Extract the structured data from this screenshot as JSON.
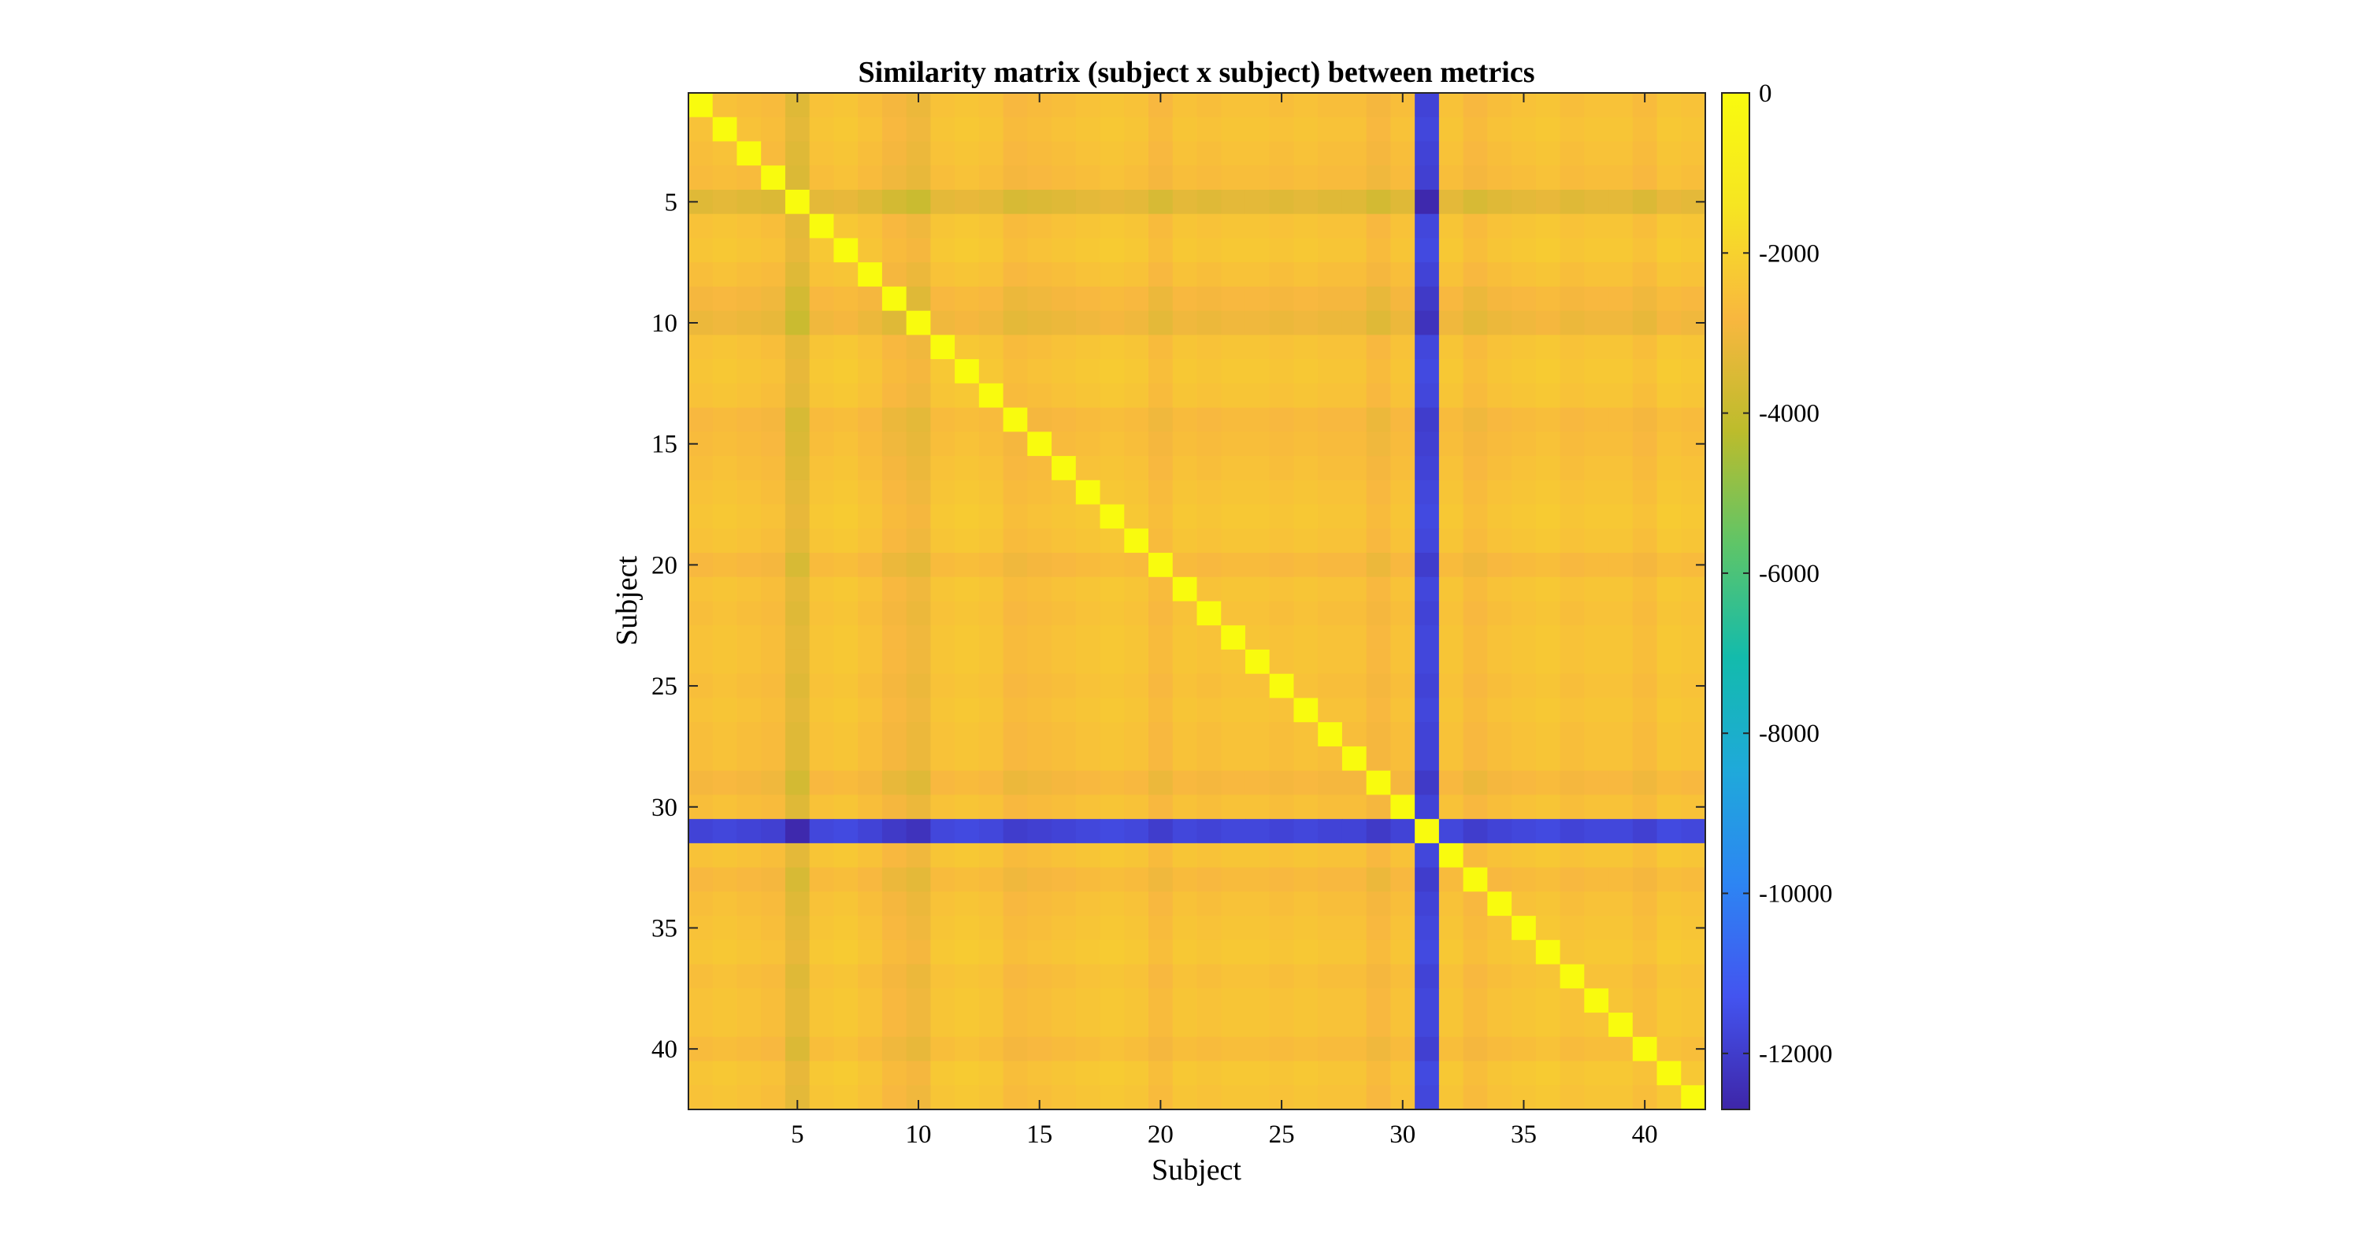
{
  "chart_data": {
    "type": "heatmap",
    "title": "Similarity matrix (subject x subject) between metrics",
    "xlabel": "Subject",
    "ylabel": "Subject",
    "n": 42,
    "xlim": [
      0.5,
      42.5
    ],
    "ylim": [
      0.5,
      42.5
    ],
    "y_direction": "reversed",
    "x_ticks": [
      5,
      10,
      15,
      20,
      25,
      30,
      35,
      40
    ],
    "y_ticks": [
      5,
      10,
      15,
      20,
      25,
      30,
      35,
      40
    ],
    "x_tick_labels": [
      "5",
      "10",
      "15",
      "20",
      "25",
      "30",
      "35",
      "40"
    ],
    "y_tick_labels": [
      "5",
      "10",
      "15",
      "20",
      "25",
      "30",
      "35",
      "40"
    ],
    "diagonal_value": 0,
    "baseline_value": -1800,
    "subject_offsets": [
      -400,
      -300,
      -400,
      -500,
      -1200,
      -300,
      -200,
      -400,
      -700,
      -900,
      -300,
      -200,
      -300,
      -600,
      -500,
      -400,
      -300,
      -200,
      -300,
      -600,
      -300,
      -400,
      -300,
      -300,
      -400,
      -300,
      -400,
      -400,
      -700,
      -400,
      -9600,
      -300,
      -600,
      -400,
      -300,
      -200,
      -400,
      -300,
      -300,
      -500,
      -200,
      -300
    ],
    "value_pattern": "symmetric; off-diagonal value(i,j) = baseline_value + subject_offsets[i] + subject_offsets[j]; diagonal = diagonal_value",
    "colorbar": {
      "min": -12700,
      "max": 0,
      "ticks": [
        0,
        -2000,
        -4000,
        -6000,
        -8000,
        -10000,
        -12000
      ],
      "tick_labels": [
        "0",
        "-2000",
        "-4000",
        "-6000",
        "-8000",
        "-10000",
        "-12000"
      ],
      "colormap": "parula",
      "colors": [
        "#3e26a8",
        "#4354f0",
        "#2d85f3",
        "#1fa9da",
        "#13bbac",
        "#5ec568",
        "#bcbc2c",
        "#f8b73f",
        "#f6e522",
        "#f9fb0e"
      ],
      "placement": "right"
    },
    "grid": false
  }
}
